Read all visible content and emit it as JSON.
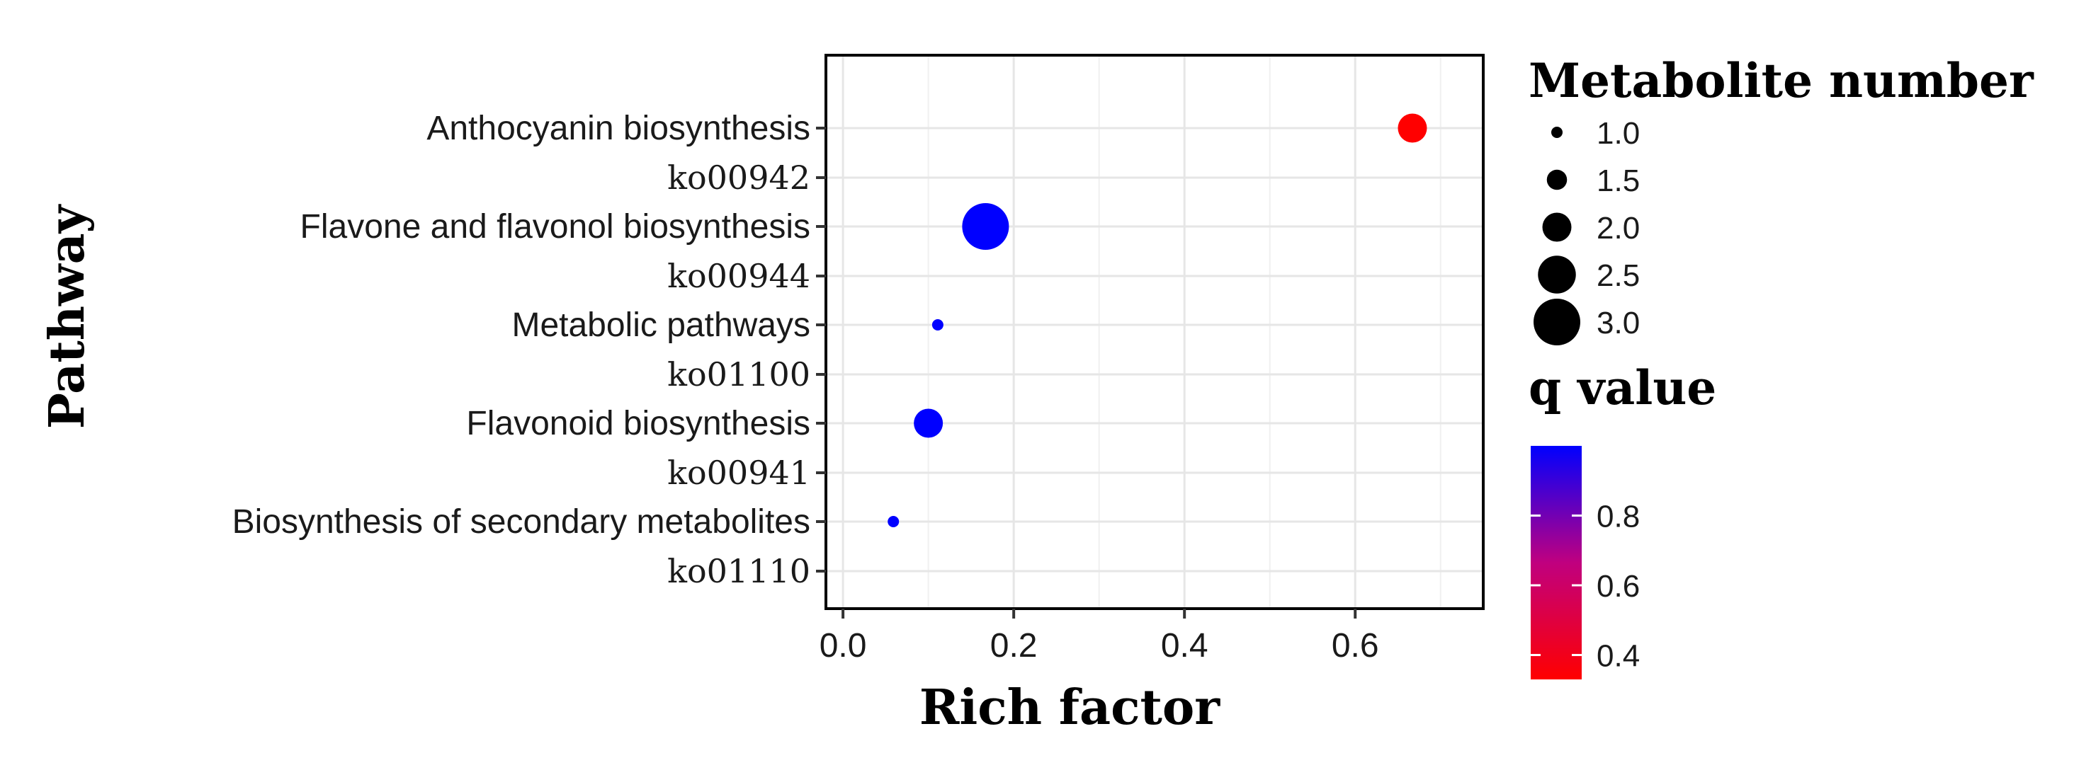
{
  "chart_data": {
    "type": "scatter",
    "title": "",
    "xlabel": "Rich factor",
    "ylabel": "Pathway",
    "xlim": [
      -0.02,
      0.75
    ],
    "x_ticks": [
      "0.0",
      "0.2",
      "0.4",
      "0.6"
    ],
    "x_tick_values": [
      0.0,
      0.2,
      0.4,
      0.6
    ],
    "grid": true,
    "pathways": [
      {
        "name": "Anthocyanin biosynthesis",
        "code": "ko00942",
        "rich_factor": 0.667,
        "metabolite_number": 2,
        "q_value": 0.33
      },
      {
        "name": "Flavone and flavonol biosynthesis",
        "code": "ko00944",
        "rich_factor": 0.167,
        "metabolite_number": 3,
        "q_value": 1.0
      },
      {
        "name": "Metabolic pathways",
        "code": "ko01100",
        "rich_factor": 0.111,
        "metabolite_number": 1,
        "q_value": 1.0
      },
      {
        "name": "Flavonoid biosynthesis",
        "code": "ko00941",
        "rich_factor": 0.1,
        "metabolite_number": 2,
        "q_value": 1.0
      },
      {
        "name": "Biosynthesis of secondary metabolites",
        "code": "ko01110",
        "rich_factor": 0.059,
        "metabolite_number": 1,
        "q_value": 1.0
      }
    ],
    "size_legend": {
      "title": "Metabolite number",
      "entries": [
        "1.0",
        "1.5",
        "2.0",
        "2.5",
        "3.0"
      ],
      "values": [
        1.0,
        1.5,
        2.0,
        2.5,
        3.0
      ]
    },
    "color_legend": {
      "title": "q value",
      "range": [
        0.33,
        1.0
      ],
      "ticks": [
        "0.4",
        "0.6",
        "0.8"
      ],
      "tick_values": [
        0.4,
        0.6,
        0.8
      ],
      "low_color": "#ff0000",
      "high_color": "#0000ff"
    }
  }
}
